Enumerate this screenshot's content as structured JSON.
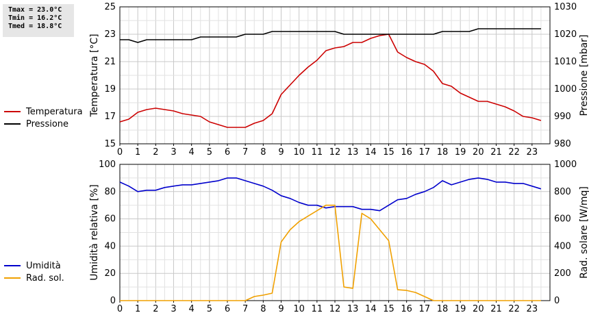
{
  "stats": {
    "tmax": "Tmax = 23.0°C",
    "tmin": "Tmin = 16.2°C",
    "tmed": "Tmed = 18.8°C"
  },
  "chart_data": [
    {
      "type": "line",
      "x": [
        0,
        0.5,
        1,
        1.5,
        2,
        2.5,
        3,
        3.5,
        4,
        4.5,
        5,
        5.5,
        6,
        6.5,
        7,
        7.5,
        8,
        8.5,
        9,
        9.5,
        10,
        10.5,
        11,
        11.5,
        12,
        12.5,
        13,
        13.5,
        14,
        14.5,
        15,
        15.5,
        16,
        16.5,
        17,
        17.5,
        18,
        18.5,
        19,
        19.5,
        20,
        20.5,
        21,
        21.5,
        22,
        22.5,
        23,
        23.5
      ],
      "xlim": [
        0,
        24
      ],
      "xticks": [
        "0",
        "1",
        "2",
        "3",
        "4",
        "5",
        "6",
        "7",
        "8",
        "9",
        "10",
        "11",
        "12",
        "13",
        "14",
        "15",
        "16",
        "17",
        "18",
        "19",
        "20",
        "21",
        "22",
        "23"
      ],
      "ylabel_left": "Temperatura [°C]",
      "ylim_left": [
        15,
        25
      ],
      "yticks_left": [
        "15",
        "17",
        "19",
        "21",
        "23",
        "25"
      ],
      "ylabel_right": "Pressione [mbar]",
      "ylim_right": [
        980,
        1030
      ],
      "yticks_right": [
        "980",
        "990",
        "1000",
        "1010",
        "1020",
        "1030"
      ],
      "grid": true,
      "legend_placement": "left",
      "series": [
        {
          "name": "Temperatura",
          "axis": "left",
          "color": "#cc0000",
          "values": [
            16.6,
            16.8,
            17.3,
            17.5,
            17.6,
            17.5,
            17.4,
            17.2,
            17.1,
            17.0,
            16.6,
            16.4,
            16.2,
            16.2,
            16.2,
            16.5,
            16.7,
            17.2,
            18.6,
            19.3,
            20.0,
            20.6,
            21.1,
            21.8,
            22.0,
            22.1,
            22.4,
            22.4,
            22.7,
            22.9,
            23.0,
            21.7,
            21.3,
            21.0,
            20.8,
            20.3,
            19.4,
            19.2,
            18.7,
            18.4,
            18.1,
            18.1,
            17.9,
            17.7,
            17.4,
            17.0,
            16.9,
            16.7
          ]
        },
        {
          "name": "Pressione",
          "axis": "right",
          "color": "#000000",
          "values": [
            1018,
            1018,
            1017,
            1018,
            1018,
            1018,
            1018,
            1018,
            1018,
            1019,
            1019,
            1019,
            1019,
            1019,
            1020,
            1020,
            1020,
            1021,
            1021,
            1021,
            1021,
            1021,
            1021,
            1021,
            1021,
            1020,
            1020,
            1020,
            1020,
            1020,
            1020,
            1020,
            1020,
            1020,
            1020,
            1020,
            1021,
            1021,
            1021,
            1021,
            1022,
            1022,
            1022,
            1022,
            1022,
            1022,
            1022,
            1022
          ]
        }
      ]
    },
    {
      "type": "line",
      "x": [
        0,
        0.5,
        1,
        1.5,
        2,
        2.5,
        3,
        3.5,
        4,
        4.5,
        5,
        5.5,
        6,
        6.5,
        7,
        7.5,
        8,
        8.5,
        9,
        9.5,
        10,
        10.5,
        11,
        11.5,
        12,
        12.5,
        13,
        13.5,
        14,
        14.5,
        15,
        15.5,
        16,
        16.5,
        17,
        17.5,
        18,
        18.5,
        19,
        19.5,
        20,
        20.5,
        21,
        21.5,
        22,
        22.5,
        23,
        23.5
      ],
      "xlim": [
        0,
        24
      ],
      "xticks": [
        "0",
        "1",
        "2",
        "3",
        "4",
        "5",
        "6",
        "7",
        "8",
        "9",
        "10",
        "11",
        "12",
        "13",
        "14",
        "15",
        "16",
        "17",
        "18",
        "19",
        "20",
        "21",
        "22",
        "23"
      ],
      "ylabel_left": "Umidità relativa [%]",
      "ylim_left": [
        0,
        100
      ],
      "yticks_left": [
        "0",
        "20",
        "40",
        "60",
        "80",
        "100"
      ],
      "ylabel_right": "Rad. solare [W/mq]",
      "ylim_right": [
        0,
        1000
      ],
      "yticks_right": [
        "0",
        "200",
        "400",
        "600",
        "800",
        "1000"
      ],
      "grid": true,
      "legend_placement": "left",
      "series": [
        {
          "name": "Umidità",
          "axis": "left",
          "color": "#0000cc",
          "values": [
            87,
            84,
            80,
            81,
            81,
            83,
            84,
            85,
            85,
            86,
            87,
            88,
            90,
            90,
            88,
            86,
            84,
            81,
            77,
            75,
            72,
            70,
            70,
            68,
            69,
            69,
            69,
            67,
            67,
            66,
            70,
            74,
            75,
            78,
            80,
            83,
            88,
            85,
            87,
            89,
            90,
            89,
            87,
            87,
            86,
            86,
            84,
            82
          ]
        },
        {
          "name": "Rad. sol.",
          "axis": "right",
          "color": "#f0a000",
          "values": [
            0,
            0,
            0,
            0,
            0,
            0,
            0,
            0,
            0,
            0,
            0,
            0,
            0,
            0,
            0,
            30,
            40,
            55,
            430,
            520,
            580,
            620,
            660,
            700,
            700,
            100,
            90,
            640,
            600,
            520,
            440,
            80,
            75,
            60,
            30,
            0,
            0,
            0,
            0,
            0,
            0,
            0,
            0,
            0,
            0,
            0,
            0,
            0
          ]
        }
      ]
    }
  ]
}
